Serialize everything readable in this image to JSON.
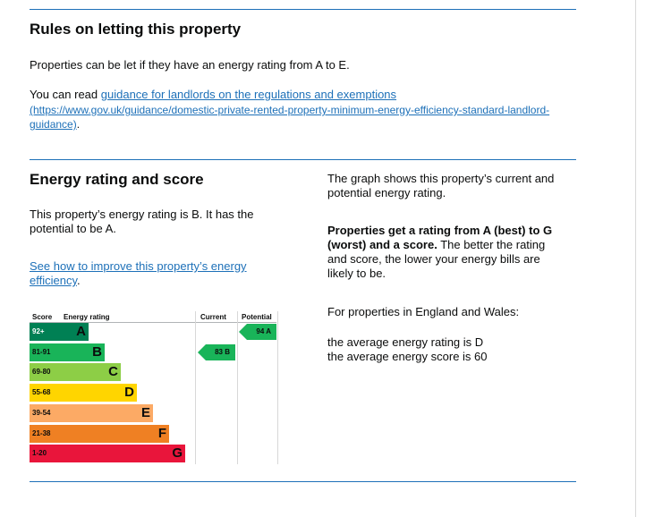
{
  "rules": {
    "heading": "Rules on letting this property",
    "para1": "Properties can be let if they have an energy rating from A to E.",
    "para2_prefix": "You can read ",
    "guidance_link_text": "guidance for landlords on the regulations and exemptions",
    "guidance_url_line1": "(https://www.gov.uk/guidance/domestic-private-rented-property-minimum-energy-efficiency-standard-landlord-",
    "guidance_url_line2": "guidance)",
    "guidance_url_suffix": "."
  },
  "energy": {
    "heading": "Energy rating and score",
    "rating_text_line1": "This property’s energy rating is B. It has the",
    "rating_text_line2": "potential to be A.",
    "improve_link_line1": "See how to improve this property’s energy",
    "improve_link_line2": "efficiency",
    "improve_link_suffix": "."
  },
  "aside": {
    "graph_text_line1": "The graph shows this property’s current and",
    "graph_text_line2": "potential energy rating.",
    "bold_line1": "Properties get a rating from A (best) to G",
    "bold_line2": "(worst) and a score.",
    "rest_line2": " The better the rating",
    "rest_line3": "and score, the lower your energy bills are",
    "rest_line4": "likely to be.",
    "england_wales": "For properties in England and Wales:",
    "avg_rating": "the average energy rating is D",
    "avg_score": "the average energy score is 60"
  },
  "chart_data": {
    "type": "bar",
    "headers": {
      "score": "Score",
      "energy_rating": "Energy rating",
      "current": "Current",
      "potential": "Potential"
    },
    "bands": [
      {
        "letter": "A",
        "range": "92+",
        "color": "#008054",
        "score_color": "#ffffff"
      },
      {
        "letter": "B",
        "range": "81-91",
        "color": "#19b459",
        "score_color": "#0b0c0c"
      },
      {
        "letter": "C",
        "range": "69-80",
        "color": "#8dce46",
        "score_color": "#0b0c0c"
      },
      {
        "letter": "D",
        "range": "55-68",
        "color": "#ffd500",
        "score_color": "#0b0c0c"
      },
      {
        "letter": "E",
        "range": "39-54",
        "color": "#fcaa65",
        "score_color": "#0b0c0c"
      },
      {
        "letter": "F",
        "range": "21-38",
        "color": "#ef8023",
        "score_color": "#0b0c0c"
      },
      {
        "letter": "G",
        "range": "1-20",
        "color": "#e9153b",
        "score_color": "#0b0c0c"
      }
    ],
    "current": {
      "score": 83,
      "band": "B",
      "label": "83  B",
      "color": "#19b459"
    },
    "potential": {
      "score": 94,
      "band": "A",
      "label": "94  A",
      "color": "#19b459"
    }
  }
}
